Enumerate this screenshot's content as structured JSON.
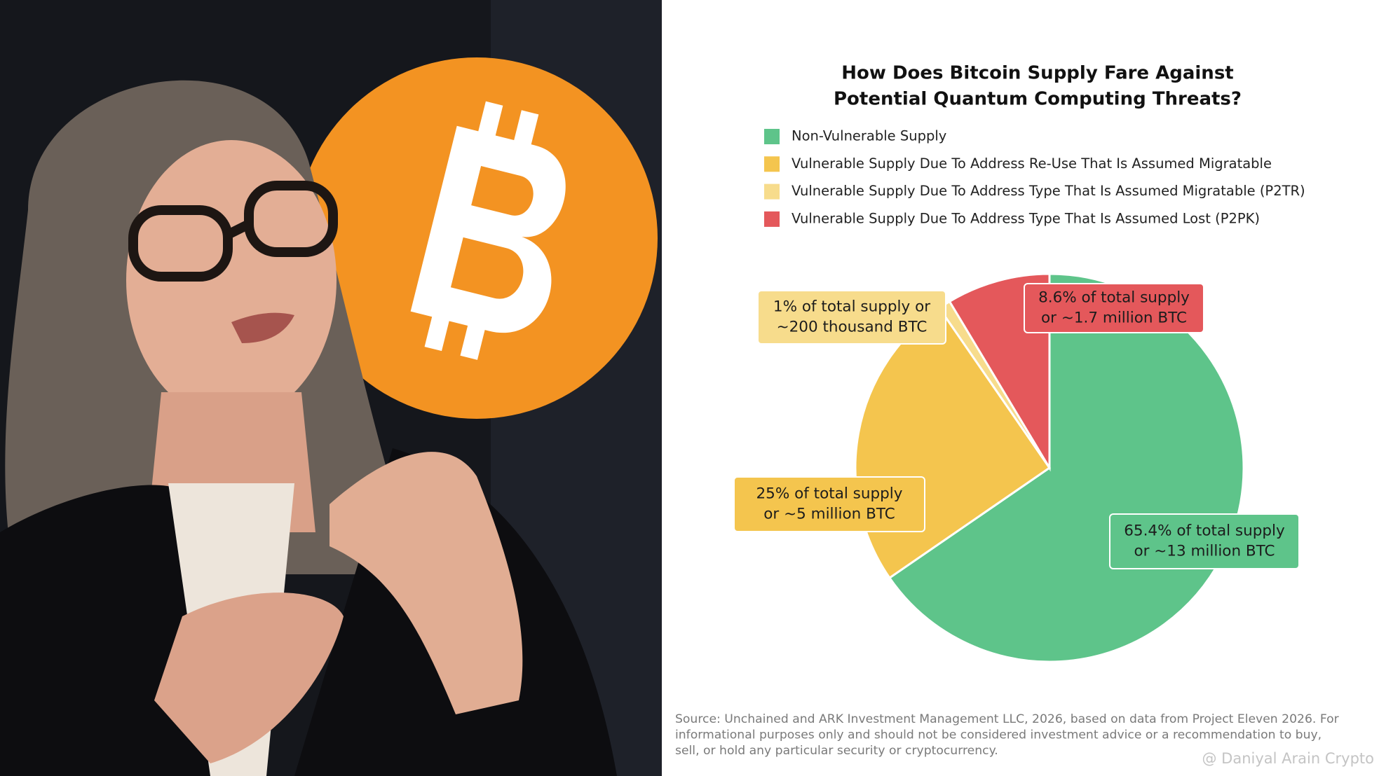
{
  "chart_data": {
    "type": "pie",
    "title": [
      "How Does Bitcoin Supply Fare Against",
      "Potential Quantum Computing Threats?"
    ],
    "categories": [
      "Non-Vulnerable Supply",
      "Vulnerable Supply Due To Address Re-Use That Is Assumed Migratable",
      "Vulnerable Supply Due To Address Type That Is Assumed Migratable (P2TR)",
      "Vulnerable Supply Due To Address Type That Is Assumed Lost (P2PK)"
    ],
    "values": [
      65.4,
      25,
      1,
      8.6
    ],
    "value_labels": [
      [
        "65.4% of total supply",
        "or ~13 million BTC"
      ],
      [
        "25% of total supply",
        "or ~5 million BTC"
      ],
      [
        "1% of total supply or",
        "~200 thousand BTC"
      ],
      [
        "8.6% of total supply",
        "or ~1.7 million BTC"
      ]
    ],
    "colors": [
      "#5ec48a",
      "#f4c54e",
      "#f7dc8c",
      "#e4585b"
    ],
    "source": [
      "Source: Unchained and ARK Investment Management LLC, 2026, based on data from Project Eleven 2026. For",
      "informational purposes only and should not be considered investment advice or a recommendation to buy,",
      "sell, or hold any particular security or cryptocurrency."
    ],
    "watermark": "@ Daniyal Arain Crypto"
  }
}
